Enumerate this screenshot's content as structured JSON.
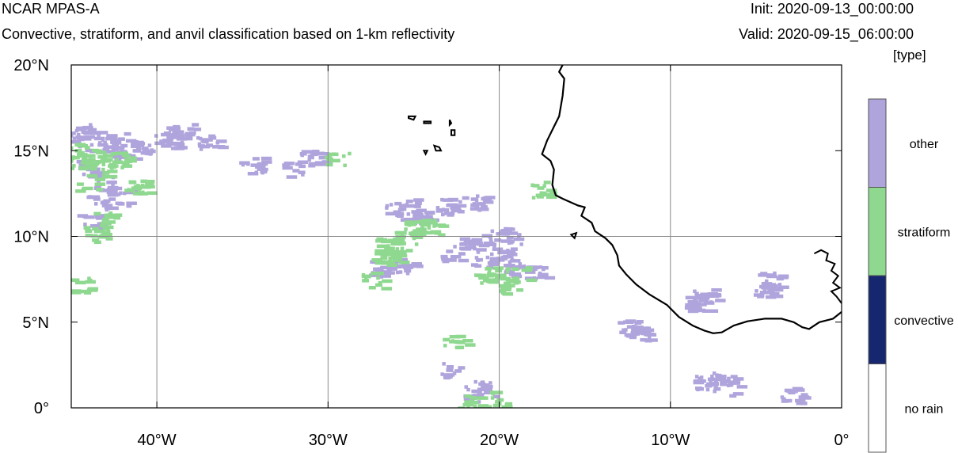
{
  "header": {
    "model": "NCAR MPAS-A",
    "description": "Convective, stratiform, and anvil classification based on 1-km reflectivity",
    "init": "Init: 2020-09-13_00:00:00",
    "valid": "Valid: 2020-09-15_06:00:00",
    "units": "[type]"
  },
  "map": {
    "lon_range": [
      -45,
      0
    ],
    "lat_range": [
      0,
      20
    ],
    "lat_ticks": [
      {
        "value": 20,
        "label": "20°N"
      },
      {
        "value": 15,
        "label": "15°N"
      },
      {
        "value": 10,
        "label": "10°N"
      },
      {
        "value": 5,
        "label": "5°N"
      },
      {
        "value": 0,
        "label": "0°"
      }
    ],
    "lon_ticks": [
      {
        "value": -40,
        "label": "40°W"
      },
      {
        "value": -30,
        "label": "30°W"
      },
      {
        "value": -20,
        "label": "20°W"
      },
      {
        "value": -10,
        "label": "10°W"
      },
      {
        "value": 0,
        "label": "0°"
      }
    ],
    "gridlines_lon": [
      -40,
      -30,
      -20,
      -10
    ],
    "gridlines_lat": [
      10
    ]
  },
  "legend": {
    "categories": [
      {
        "label": "other",
        "color": "#b0a4dc"
      },
      {
        "label": "stratiform",
        "color": "#8fd890"
      },
      {
        "label": "convective",
        "color": "#17276f"
      },
      {
        "label": "no rain",
        "color": "#ffffff"
      }
    ]
  },
  "colors": {
    "other": "#b0a4dc",
    "stratiform": "#8fd890",
    "coastline": "#000000",
    "grid": "#8a8a8a"
  },
  "features": {
    "coastline": [
      [
        -16.3,
        20.0
      ],
      [
        -16.5,
        19.6
      ],
      [
        -16.2,
        19.2
      ],
      [
        -16.3,
        18.2
      ],
      [
        -16.5,
        17.0
      ],
      [
        -16.8,
        16.4
      ],
      [
        -17.2,
        15.6
      ],
      [
        -17.5,
        14.8
      ],
      [
        -17.0,
        14.4
      ],
      [
        -16.8,
        13.9
      ],
      [
        -16.9,
        13.0
      ],
      [
        -16.7,
        12.4
      ],
      [
        -16.3,
        12.2
      ],
      [
        -15.4,
        11.8
      ],
      [
        -15.0,
        11.7
      ],
      [
        -15.2,
        11.2
      ],
      [
        -14.6,
        10.8
      ],
      [
        -14.4,
        10.3
      ],
      [
        -13.8,
        9.9
      ],
      [
        -13.4,
        9.5
      ],
      [
        -13.1,
        8.9
      ],
      [
        -13.0,
        8.3
      ],
      [
        -12.6,
        7.8
      ],
      [
        -12.0,
        7.2
      ],
      [
        -11.2,
        6.6
      ],
      [
        -10.2,
        6.0
      ],
      [
        -9.5,
        5.3
      ],
      [
        -8.7,
        4.8
      ],
      [
        -8.0,
        4.5
      ],
      [
        -7.5,
        4.35
      ],
      [
        -7.0,
        4.4
      ],
      [
        -6.3,
        4.8
      ],
      [
        -5.5,
        5.05
      ],
      [
        -4.5,
        5.2
      ],
      [
        -3.5,
        5.2
      ],
      [
        -2.8,
        5.0
      ],
      [
        -2.3,
        4.7
      ],
      [
        -1.9,
        4.6
      ],
      [
        -1.3,
        5.0
      ],
      [
        -0.5,
        5.2
      ],
      [
        0.0,
        5.6
      ]
    ],
    "islands": [
      [
        [
          -25.3,
          17.0
        ],
        [
          -24.9,
          17.0
        ],
        [
          -25.0,
          16.8
        ],
        [
          -25.3,
          16.9
        ],
        [
          -25.3,
          17.0
        ]
      ],
      [
        [
          -24.4,
          16.7
        ],
        [
          -24.0,
          16.7
        ],
        [
          -24.0,
          16.6
        ],
        [
          -24.4,
          16.6
        ],
        [
          -24.4,
          16.7
        ]
      ],
      [
        [
          -22.9,
          16.8
        ],
        [
          -22.8,
          16.6
        ],
        [
          -22.9,
          16.5
        ],
        [
          -22.9,
          16.8
        ]
      ],
      [
        [
          -22.8,
          16.2
        ],
        [
          -22.6,
          16.2
        ],
        [
          -22.6,
          15.9
        ],
        [
          -22.8,
          15.9
        ],
        [
          -22.8,
          16.2
        ]
      ],
      [
        [
          -23.8,
          15.3
        ],
        [
          -23.5,
          15.2
        ],
        [
          -23.4,
          15.0
        ],
        [
          -23.7,
          15.0
        ],
        [
          -23.8,
          15.3
        ]
      ],
      [
        [
          -24.4,
          15.0
        ],
        [
          -24.2,
          15.0
        ],
        [
          -24.3,
          14.8
        ],
        [
          -24.4,
          15.0
        ]
      ],
      [
        [
          -15.8,
          10.1
        ],
        [
          -15.5,
          10.2
        ],
        [
          -15.6,
          9.9
        ],
        [
          -15.8,
          10.1
        ]
      ]
    ],
    "coast_east": [
      [
        -1.6,
        9.0
      ],
      [
        -1.2,
        9.2
      ],
      [
        -0.8,
        9.0
      ],
      [
        -0.9,
        8.6
      ],
      [
        -0.4,
        8.4
      ],
      [
        -0.6,
        8.0
      ],
      [
        -0.2,
        7.7
      ],
      [
        -0.5,
        7.3
      ],
      [
        -0.1,
        7.0
      ],
      [
        -0.6,
        6.8
      ],
      [
        -0.3,
        6.5
      ],
      [
        0.0,
        6.1
      ]
    ]
  },
  "precip": {
    "other": [
      [
        -45,
        16
      ],
      [
        -44.5,
        16.2
      ],
      [
        -44,
        15.8
      ],
      [
        -43.5,
        15.5
      ],
      [
        -42.5,
        15.8
      ],
      [
        -42,
        15
      ],
      [
        -44,
        14
      ],
      [
        -43,
        13.2
      ],
      [
        -42.3,
        12.3
      ],
      [
        -43.5,
        12
      ],
      [
        -44,
        11
      ],
      [
        -41,
        15.2
      ],
      [
        -39.5,
        15.6
      ],
      [
        -39,
        16
      ],
      [
        -38.5,
        16.3
      ],
      [
        -37,
        15.5
      ],
      [
        -34.5,
        14.2
      ],
      [
        -32,
        14
      ],
      [
        -31,
        14.6
      ],
      [
        -26,
        11.5
      ],
      [
        -25.5,
        11.8
      ],
      [
        -24.5,
        11.2
      ],
      [
        -23,
        11.8
      ],
      [
        -27,
        8.2
      ],
      [
        -25.5,
        8.3
      ],
      [
        -23,
        9
      ],
      [
        -21.5,
        12
      ],
      [
        -20.5,
        10
      ],
      [
        -19.5,
        10.1
      ],
      [
        -20,
        9
      ],
      [
        -21,
        8.5
      ],
      [
        -18,
        8
      ],
      [
        -22,
        9.5
      ],
      [
        -19.3,
        8.2
      ],
      [
        -12.5,
        4.8
      ],
      [
        -12,
        4.4
      ],
      [
        -8.5,
        6.2
      ],
      [
        -8,
        6.6
      ],
      [
        -4.5,
        7
      ],
      [
        -4.3,
        7.5
      ],
      [
        -7,
        1.8
      ],
      [
        -6.5,
        1.2
      ],
      [
        -8,
        1.5
      ],
      [
        -3,
        0.8
      ],
      [
        -21.6,
        0.9
      ],
      [
        -22.8,
        2.3
      ],
      [
        -21,
        1.2
      ]
    ],
    "stratiform": [
      [
        -44.8,
        15
      ],
      [
        -44.5,
        14.5
      ],
      [
        -43.8,
        14.7
      ],
      [
        -44.2,
        13.2
      ],
      [
        -43,
        11
      ],
      [
        -43.6,
        10.2
      ],
      [
        -42.6,
        13.8
      ],
      [
        -42.2,
        14.5
      ],
      [
        -41.2,
        13
      ],
      [
        -26.6,
        9.5
      ],
      [
        -26.1,
        9
      ],
      [
        -25.5,
        10.1
      ],
      [
        -25,
        10.5
      ],
      [
        -24.2,
        10.6
      ],
      [
        -27.5,
        7.5
      ],
      [
        -26.8,
        8.8
      ],
      [
        -19.6,
        7.2
      ],
      [
        -19,
        7.8
      ],
      [
        -20.8,
        7.8
      ],
      [
        -17.5,
        12.8
      ],
      [
        -29.5,
        14.5
      ],
      [
        -44.6,
        7.2
      ],
      [
        -22.7,
        3.8
      ],
      [
        -21.8,
        0.4
      ],
      [
        -20.2,
        0.6
      ]
    ]
  }
}
